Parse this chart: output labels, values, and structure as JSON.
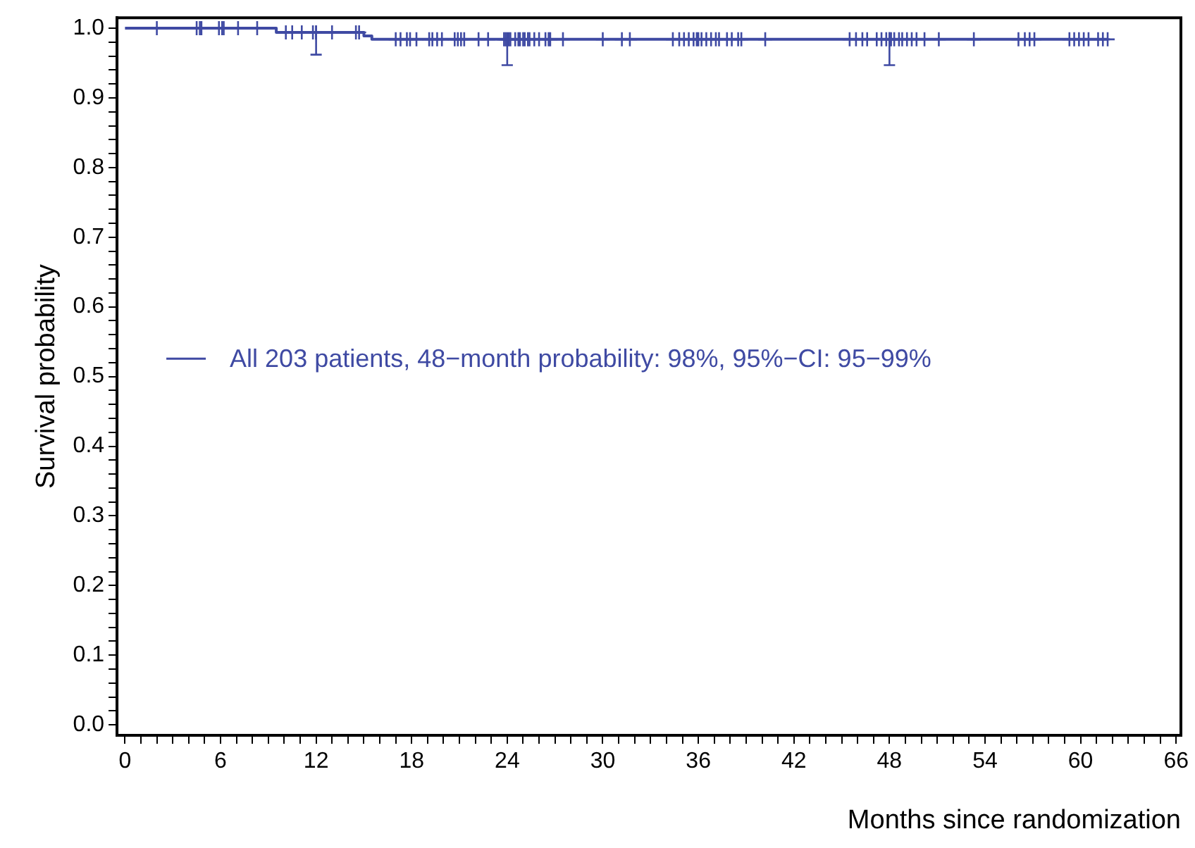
{
  "chart_data": {
    "type": "step",
    "xlabel": "Months since randomization",
    "ylabel": "Survival probability",
    "xlim": [
      -0.5,
      66.3
    ],
    "ylim": [
      -0.015,
      1.015
    ],
    "xticks": [
      0,
      {
        "value": 1,
        "label": null
      },
      {
        "value": 2,
        "label": null
      },
      {
        "value": 3,
        "label": null
      },
      {
        "value": 4,
        "label": null
      },
      {
        "value": 5,
        "label": null
      },
      6,
      {
        "value": 7,
        "label": null
      },
      {
        "value": 8,
        "label": null
      },
      {
        "value": 9,
        "label": null
      },
      {
        "value": 10,
        "label": null
      },
      {
        "value": 11,
        "label": null
      },
      12,
      {
        "value": 13,
        "label": null
      },
      {
        "value": 14,
        "label": null
      },
      {
        "value": 15,
        "label": null
      },
      {
        "value": 16,
        "label": null
      },
      {
        "value": 17,
        "label": null
      },
      18,
      {
        "value": 19,
        "label": null
      },
      {
        "value": 20,
        "label": null
      },
      {
        "value": 21,
        "label": null
      },
      {
        "value": 22,
        "label": null
      },
      {
        "value": 23,
        "label": null
      },
      24,
      {
        "value": 25,
        "label": null
      },
      {
        "value": 26,
        "label": null
      },
      {
        "value": 27,
        "label": null
      },
      {
        "value": 28,
        "label": null
      },
      {
        "value": 29,
        "label": null
      },
      30,
      {
        "value": 31,
        "label": null
      },
      {
        "value": 32,
        "label": null
      },
      {
        "value": 33,
        "label": null
      },
      {
        "value": 34,
        "label": null
      },
      {
        "value": 35,
        "label": null
      },
      36,
      {
        "value": 37,
        "label": null
      },
      {
        "value": 38,
        "label": null
      },
      {
        "value": 39,
        "label": null
      },
      {
        "value": 40,
        "label": null
      },
      {
        "value": 41,
        "label": null
      },
      42,
      {
        "value": 43,
        "label": null
      },
      {
        "value": 44,
        "label": null
      },
      {
        "value": 45,
        "label": null
      },
      {
        "value": 46,
        "label": null
      },
      {
        "value": 47,
        "label": null
      },
      48,
      {
        "value": 49,
        "label": null
      },
      {
        "value": 50,
        "label": null
      },
      {
        "value": 51,
        "label": null
      },
      {
        "value": 52,
        "label": null
      },
      {
        "value": 53,
        "label": null
      },
      54,
      {
        "value": 55,
        "label": null
      },
      {
        "value": 56,
        "label": null
      },
      {
        "value": 57,
        "label": null
      },
      {
        "value": 58,
        "label": null
      },
      {
        "value": 59,
        "label": null
      },
      60,
      {
        "value": 61,
        "label": null
      },
      {
        "value": 62,
        "label": null
      },
      {
        "value": 63,
        "label": null
      },
      {
        "value": 64,
        "label": null
      },
      {
        "value": 65,
        "label": null
      },
      66
    ],
    "yticks": [
      {
        "value": 0,
        "label": "0.0"
      },
      {
        "value": 0.02,
        "label": null
      },
      {
        "value": 0.04,
        "label": null
      },
      {
        "value": 0.06,
        "label": null
      },
      {
        "value": 0.08,
        "label": null
      },
      {
        "value": 0.1,
        "label": "0.1"
      },
      {
        "value": 0.12,
        "label": null
      },
      {
        "value": 0.14,
        "label": null
      },
      {
        "value": 0.16,
        "label": null
      },
      {
        "value": 0.18,
        "label": null
      },
      {
        "value": 0.2,
        "label": "0.2"
      },
      {
        "value": 0.22,
        "label": null
      },
      {
        "value": 0.24,
        "label": null
      },
      {
        "value": 0.26,
        "label": null
      },
      {
        "value": 0.28,
        "label": null
      },
      {
        "value": 0.3,
        "label": "0.3"
      },
      {
        "value": 0.32,
        "label": null
      },
      {
        "value": 0.34,
        "label": null
      },
      {
        "value": 0.36,
        "label": null
      },
      {
        "value": 0.38,
        "label": null
      },
      {
        "value": 0.4,
        "label": "0.4"
      },
      {
        "value": 0.42,
        "label": null
      },
      {
        "value": 0.44,
        "label": null
      },
      {
        "value": 0.46,
        "label": null
      },
      {
        "value": 0.48,
        "label": null
      },
      {
        "value": 0.5,
        "label": "0.5"
      },
      {
        "value": 0.52,
        "label": null
      },
      {
        "value": 0.54,
        "label": null
      },
      {
        "value": 0.56,
        "label": null
      },
      {
        "value": 0.58,
        "label": null
      },
      {
        "value": 0.6,
        "label": "0.6"
      },
      {
        "value": 0.62,
        "label": null
      },
      {
        "value": 0.64,
        "label": null
      },
      {
        "value": 0.66,
        "label": null
      },
      {
        "value": 0.68,
        "label": null
      },
      {
        "value": 0.7,
        "label": "0.7"
      },
      {
        "value": 0.72,
        "label": null
      },
      {
        "value": 0.74,
        "label": null
      },
      {
        "value": 0.76,
        "label": null
      },
      {
        "value": 0.78,
        "label": null
      },
      {
        "value": 0.8,
        "label": "0.8"
      },
      {
        "value": 0.82,
        "label": null
      },
      {
        "value": 0.84,
        "label": null
      },
      {
        "value": 0.86,
        "label": null
      },
      {
        "value": 0.88,
        "label": null
      },
      {
        "value": 0.9,
        "label": "0.9"
      },
      {
        "value": 0.92,
        "label": null
      },
      {
        "value": 0.94,
        "label": null
      },
      {
        "value": 0.96,
        "label": null
      },
      {
        "value": 0.98,
        "label": null
      },
      {
        "value": 1,
        "label": "1.0"
      }
    ],
    "grid": false,
    "legend": "center left",
    "series": [
      {
        "name": "All 203 patients, 48−month probability: 98%, 95%−CI: 95−99%",
        "color": "#3f4aa3",
        "x": [
          0,
          9.5,
          15.0,
          15.5,
          61.7
        ],
        "values": [
          1.0,
          0.994,
          0.989,
          0.984,
          0.984
        ]
      },
      {
        "type": "scatter",
        "marker": "cross",
        "color": "#3f4aa3",
        "x": [
          2.0,
          4.5,
          4.7,
          4.8,
          5.9,
          6.1,
          6.2,
          7.1,
          8.3,
          10.1,
          10.5,
          11.1,
          11.8,
          12.0,
          13.0,
          14.5,
          14.7,
          17.0,
          17.3,
          17.7,
          17.9,
          18.3,
          19.1,
          19.3,
          19.6,
          19.9,
          20.7,
          20.9,
          21.1,
          21.3,
          22.2,
          22.8,
          23.8,
          23.9,
          24.1,
          24.2,
          24.5,
          24.7,
          24.8,
          25.0,
          25.1,
          25.3,
          25.4,
          25.7,
          26.0,
          26.4,
          26.6,
          26.7,
          27.5,
          30.0,
          31.2,
          31.7,
          34.4,
          34.8,
          35.1,
          35.4,
          35.7,
          35.9,
          36.0,
          36.2,
          36.5,
          36.8,
          37.1,
          37.3,
          37.8,
          38.1,
          38.5,
          38.7,
          40.2,
          45.5,
          45.9,
          46.3,
          46.6,
          47.2,
          47.5,
          47.8,
          48.0,
          48.1,
          48.3,
          48.6,
          48.8,
          49.1,
          49.4,
          49.7,
          50.2,
          51.1,
          53.3,
          56.1,
          56.5,
          56.8,
          57.1,
          59.3,
          59.6,
          59.9,
          60.2,
          60.5,
          61.1,
          61.4,
          61.7
        ],
        "values": [
          1.0,
          1.0,
          1.0,
          1.0,
          1.0,
          1.0,
          1.0,
          1.0,
          1.0,
          0.994,
          0.994,
          0.994,
          0.994,
          0.994,
          0.994,
          0.994,
          0.994,
          0.984,
          0.984,
          0.984,
          0.984,
          0.984,
          0.984,
          0.984,
          0.984,
          0.984,
          0.984,
          0.984,
          0.984,
          0.984,
          0.984,
          0.984,
          0.984,
          0.984,
          0.984,
          0.984,
          0.984,
          0.984,
          0.984,
          0.984,
          0.984,
          0.984,
          0.984,
          0.984,
          0.984,
          0.984,
          0.984,
          0.984,
          0.984,
          0.984,
          0.984,
          0.984,
          0.984,
          0.984,
          0.984,
          0.984,
          0.984,
          0.984,
          0.984,
          0.984,
          0.984,
          0.984,
          0.984,
          0.984,
          0.984,
          0.984,
          0.984,
          0.984,
          0.984,
          0.984,
          0.984,
          0.984,
          0.984,
          0.984,
          0.984,
          0.984,
          0.984,
          0.984,
          0.984,
          0.984,
          0.984,
          0.984,
          0.984,
          0.984,
          0.984,
          0.984,
          0.984,
          0.984,
          0.984,
          0.984,
          0.984,
          0.984,
          0.984,
          0.984,
          0.984,
          0.984,
          0.984,
          0.984,
          0.984
        ]
      },
      {
        "type": "scatter",
        "marker": "cross",
        "color": "#3f4aa3",
        "x": [
          12,
          24,
          48
        ],
        "values": [
          0.994,
          0.984,
          0.984
        ],
        "errors": [
          [
            0.962,
            0.994
          ],
          [
            0.947,
            0.984
          ],
          [
            0.947,
            0.984
          ]
        ]
      }
    ]
  }
}
